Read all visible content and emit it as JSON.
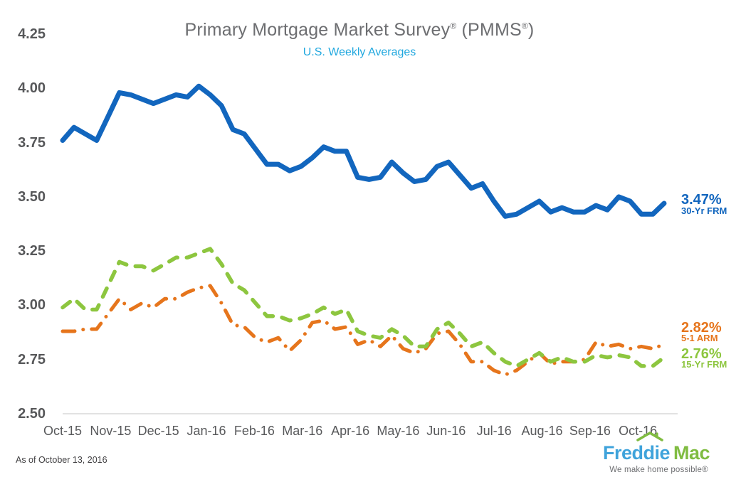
{
  "title": {
    "text1": "Primary Mortgage Market Survey",
    "sup1": "®",
    "text2": " (PMMS",
    "sup2": "®",
    "text3": ")"
  },
  "colors": {
    "line_30yr_blue": "#1266BE",
    "line_51arm_orange": "#E6751C",
    "line_15yr_green": "#8DC63F",
    "subtitle_blue": "#21A8DF",
    "title_gray": "#6D6E71",
    "axis_text_gray": "#57585A",
    "axis_line_gray": "#D8D8D8",
    "footer_text_gray": "#414042",
    "logo_blue": "#3FA3DB",
    "logo_green": "#80BC41",
    "tagline_gray": "#6E6F72",
    "background": "#FFFFFF"
  },
  "chart_data": {
    "type": "line",
    "title": "Primary Mortgage Market Survey® (PMMS®)",
    "subtitle": "U.S. Weekly Averages",
    "x_tick_labels": [
      "Oct-15",
      "Nov-15",
      "Dec-15",
      "Jan-16",
      "Feb-16",
      "Mar-16",
      "Apr-16",
      "May-16",
      "Jun-16",
      "Jul-16",
      "Aug-16",
      "Sep-16",
      "Oct-16"
    ],
    "y_tick_labels": [
      "4.25",
      "4.00",
      "3.75",
      "3.50",
      "3.25",
      "3.00",
      "2.75",
      "2.50"
    ],
    "ylim": [
      2.5,
      4.25
    ],
    "x_unit": "weekly observations, Oct 2015 through Oct 13 2016",
    "grid": false,
    "legend_position": "right of line ends",
    "series": [
      {
        "name": "30-Yr FRM",
        "end_label": "3.47%",
        "color": "#1266BE",
        "style": "solid",
        "values": [
          3.76,
          3.82,
          3.79,
          3.76,
          3.87,
          3.98,
          3.97,
          3.95,
          3.93,
          3.95,
          3.97,
          3.96,
          4.01,
          3.97,
          3.92,
          3.81,
          3.79,
          3.72,
          3.65,
          3.65,
          3.62,
          3.64,
          3.68,
          3.73,
          3.71,
          3.71,
          3.59,
          3.58,
          3.59,
          3.66,
          3.61,
          3.57,
          3.58,
          3.64,
          3.66,
          3.6,
          3.54,
          3.56,
          3.48,
          3.41,
          3.42,
          3.45,
          3.48,
          3.43,
          3.45,
          3.43,
          3.43,
          3.46,
          3.44,
          3.5,
          3.48,
          3.42,
          3.42,
          3.47
        ]
      },
      {
        "name": "5-1 ARM",
        "end_label": "2.82%",
        "color": "#E6751C",
        "style": "dash-dot",
        "values": [
          2.88,
          2.88,
          2.89,
          2.89,
          2.96,
          3.03,
          2.98,
          3.01,
          2.99,
          3.03,
          3.03,
          3.06,
          3.08,
          3.09,
          3.01,
          2.91,
          2.9,
          2.85,
          2.83,
          2.85,
          2.79,
          2.84,
          2.92,
          2.93,
          2.89,
          2.9,
          2.82,
          2.84,
          2.81,
          2.86,
          2.8,
          2.78,
          2.8,
          2.87,
          2.88,
          2.82,
          2.74,
          2.74,
          2.7,
          2.68,
          2.7,
          2.74,
          2.78,
          2.73,
          2.74,
          2.74,
          2.75,
          2.83,
          2.81,
          2.82,
          2.8,
          2.81,
          2.8,
          2.82
        ]
      },
      {
        "name": "15-Yr FRM",
        "end_label": "2.76%",
        "color": "#8DC63F",
        "style": "dashed",
        "values": [
          2.99,
          3.03,
          2.98,
          2.98,
          3.09,
          3.2,
          3.18,
          3.18,
          3.16,
          3.19,
          3.22,
          3.22,
          3.24,
          3.26,
          3.19,
          3.1,
          3.07,
          3.01,
          2.95,
          2.95,
          2.93,
          2.94,
          2.96,
          2.99,
          2.96,
          2.98,
          2.88,
          2.86,
          2.85,
          2.89,
          2.86,
          2.81,
          2.81,
          2.89,
          2.92,
          2.87,
          2.81,
          2.83,
          2.78,
          2.74,
          2.72,
          2.75,
          2.78,
          2.74,
          2.76,
          2.74,
          2.74,
          2.77,
          2.76,
          2.77,
          2.76,
          2.72,
          2.72,
          2.76
        ]
      }
    ]
  },
  "footer": {
    "as_of": "As of October 13, 2016",
    "logo": {
      "word1": "Freddie",
      "word2": "Mac",
      "tagline": "We make home possible®"
    }
  }
}
